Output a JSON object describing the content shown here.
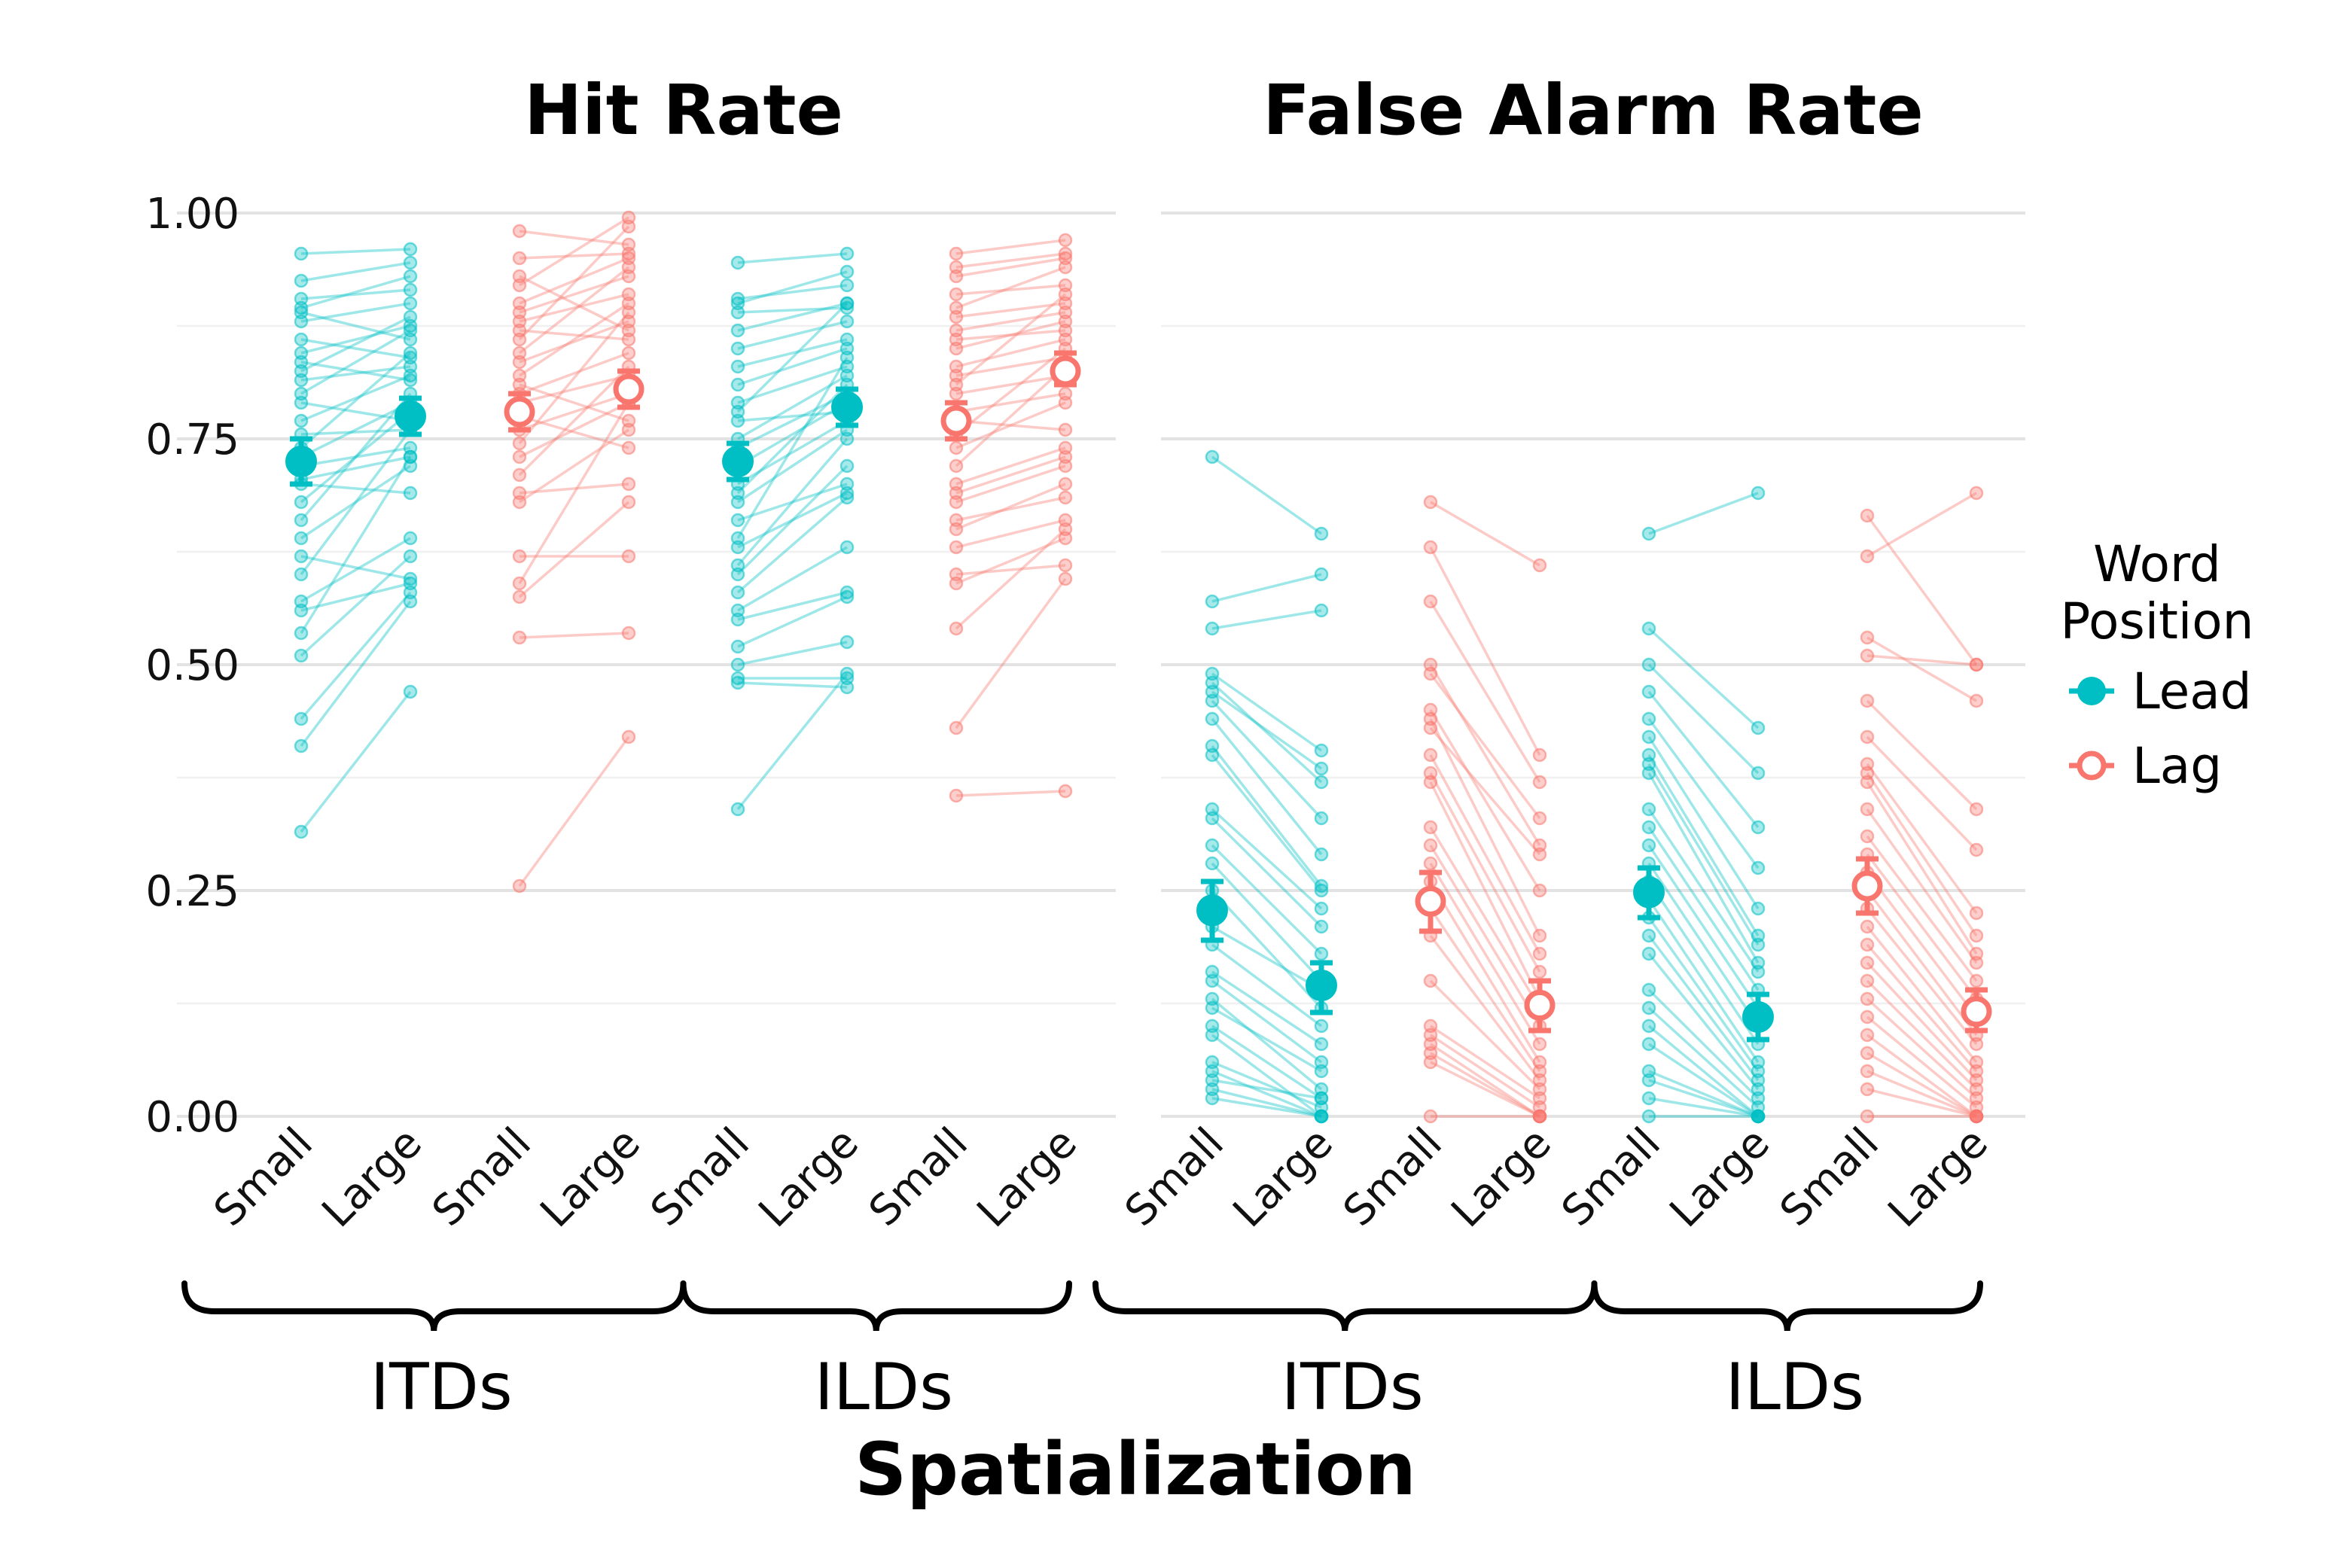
{
  "chart_data": {
    "type": "scatter",
    "subtype": "paired-dot plot with means and error bars (faceted)",
    "facets": [
      "Hit Rate",
      "False Alarm Rate"
    ],
    "x_conditions": [
      "Small",
      "Large",
      "Small",
      "Large",
      "Small",
      "Large",
      "Small",
      "Large"
    ],
    "x_groups": [
      "ITDs",
      "ILDs"
    ],
    "xlabel": "Spatialization",
    "ylim": [
      0,
      1
    ],
    "yticks": [
      "0.00",
      "0.25",
      "0.50",
      "0.75",
      "1.00"
    ],
    "legend": {
      "title_lines": [
        "Word",
        "Position"
      ],
      "position": "right",
      "entries": [
        {
          "name": "Lead",
          "color": "#00BFC4",
          "marker": "filled-circle"
        },
        {
          "name": "Lag",
          "color": "#F8766D",
          "marker": "open-circle"
        }
      ]
    },
    "grid": true,
    "series": [
      {
        "facet": "Hit Rate",
        "group": "ITDs",
        "position": "Lead",
        "color": "#00BFC4",
        "mean": [
          0.725,
          0.775
        ],
        "ci": [
          [
            0.7,
            0.75
          ],
          [
            0.755,
            0.795
          ]
        ],
        "pairs": [
          [
            0.955,
            0.96
          ],
          [
            0.925,
            0.945
          ],
          [
            0.905,
            0.915
          ],
          [
            0.895,
            0.93
          ],
          [
            0.89,
            0.86
          ],
          [
            0.88,
            0.9
          ],
          [
            0.86,
            0.84
          ],
          [
            0.845,
            0.875
          ],
          [
            0.835,
            0.815
          ],
          [
            0.825,
            0.885
          ],
          [
            0.815,
            0.83
          ],
          [
            0.8,
            0.87
          ],
          [
            0.79,
            0.77
          ],
          [
            0.77,
            0.82
          ],
          [
            0.755,
            0.76
          ],
          [
            0.74,
            0.845
          ],
          [
            0.73,
            0.79
          ],
          [
            0.72,
            0.74
          ],
          [
            0.705,
            0.73
          ],
          [
            0.7,
            0.69
          ],
          [
            0.68,
            0.78
          ],
          [
            0.66,
            0.8
          ],
          [
            0.64,
            0.72
          ],
          [
            0.62,
            0.595
          ],
          [
            0.6,
            0.76
          ],
          [
            0.57,
            0.64
          ],
          [
            0.56,
            0.59
          ],
          [
            0.535,
            0.73
          ],
          [
            0.51,
            0.62
          ],
          [
            0.44,
            0.58
          ],
          [
            0.41,
            0.57
          ],
          [
            0.315,
            0.47
          ]
        ]
      },
      {
        "facet": "Hit Rate",
        "group": "ITDs",
        "position": "Lag",
        "color": "#F8766D",
        "mean": [
          0.78,
          0.805
        ],
        "ci": [
          [
            0.76,
            0.8
          ],
          [
            0.785,
            0.825
          ]
        ],
        "pairs": [
          [
            0.98,
            0.965
          ],
          [
            0.95,
            0.955
          ],
          [
            0.93,
            0.87
          ],
          [
            0.92,
            0.995
          ],
          [
            0.9,
            0.95
          ],
          [
            0.89,
            0.93
          ],
          [
            0.88,
            0.91
          ],
          [
            0.87,
            0.86
          ],
          [
            0.86,
            0.985
          ],
          [
            0.845,
            0.94
          ],
          [
            0.835,
            0.88
          ],
          [
            0.82,
            0.9
          ],
          [
            0.81,
            0.77
          ],
          [
            0.8,
            0.845
          ],
          [
            0.79,
            0.82
          ],
          [
            0.775,
            0.74
          ],
          [
            0.76,
            0.8
          ],
          [
            0.745,
            0.89
          ],
          [
            0.73,
            0.79
          ],
          [
            0.71,
            0.83
          ],
          [
            0.69,
            0.7
          ],
          [
            0.68,
            0.76
          ],
          [
            0.62,
            0.62
          ],
          [
            0.59,
            0.79
          ],
          [
            0.575,
            0.68
          ],
          [
            0.53,
            0.535
          ],
          [
            0.255,
            0.42
          ]
        ]
      },
      {
        "facet": "Hit Rate",
        "group": "ILDs",
        "position": "Lead",
        "color": "#00BFC4",
        "mean": [
          0.725,
          0.785
        ],
        "ci": [
          [
            0.705,
            0.745
          ],
          [
            0.765,
            0.805
          ]
        ],
        "pairs": [
          [
            0.945,
            0.955
          ],
          [
            0.905,
            0.92
          ],
          [
            0.9,
            0.935
          ],
          [
            0.89,
            0.895
          ],
          [
            0.87,
            0.9
          ],
          [
            0.85,
            0.88
          ],
          [
            0.83,
            0.86
          ],
          [
            0.81,
            0.85
          ],
          [
            0.79,
            0.83
          ],
          [
            0.78,
            0.9
          ],
          [
            0.77,
            0.78
          ],
          [
            0.75,
            0.82
          ],
          [
            0.74,
            0.8
          ],
          [
            0.72,
            0.79
          ],
          [
            0.7,
            0.77
          ],
          [
            0.69,
            0.81
          ],
          [
            0.68,
            0.76
          ],
          [
            0.66,
            0.7
          ],
          [
            0.64,
            0.84
          ],
          [
            0.63,
            0.69
          ],
          [
            0.61,
            0.75
          ],
          [
            0.6,
            0.72
          ],
          [
            0.58,
            0.685
          ],
          [
            0.56,
            0.63
          ],
          [
            0.55,
            0.58
          ],
          [
            0.52,
            0.575
          ],
          [
            0.5,
            0.525
          ],
          [
            0.485,
            0.485
          ],
          [
            0.48,
            0.475
          ],
          [
            0.34,
            0.49
          ]
        ]
      },
      {
        "facet": "Hit Rate",
        "group": "ILDs",
        "position": "Lag",
        "color": "#F8766D",
        "mean": [
          0.77,
          0.825
        ],
        "ci": [
          [
            0.75,
            0.79
          ],
          [
            0.81,
            0.845
          ]
        ],
        "pairs": [
          [
            0.955,
            0.97
          ],
          [
            0.94,
            0.955
          ],
          [
            0.93,
            0.95
          ],
          [
            0.91,
            0.92
          ],
          [
            0.895,
            0.94
          ],
          [
            0.885,
            0.9
          ],
          [
            0.87,
            0.89
          ],
          [
            0.86,
            0.87
          ],
          [
            0.85,
            0.88
          ],
          [
            0.83,
            0.86
          ],
          [
            0.82,
            0.84
          ],
          [
            0.81,
            0.91
          ],
          [
            0.8,
            0.82
          ],
          [
            0.78,
            0.8
          ],
          [
            0.77,
            0.76
          ],
          [
            0.755,
            0.85
          ],
          [
            0.74,
            0.79
          ],
          [
            0.72,
            0.83
          ],
          [
            0.7,
            0.74
          ],
          [
            0.69,
            0.73
          ],
          [
            0.68,
            0.72
          ],
          [
            0.66,
            0.685
          ],
          [
            0.65,
            0.7
          ],
          [
            0.63,
            0.66
          ],
          [
            0.6,
            0.61
          ],
          [
            0.59,
            0.64
          ],
          [
            0.54,
            0.65
          ],
          [
            0.43,
            0.595
          ],
          [
            0.355,
            0.36
          ]
        ]
      },
      {
        "facet": "False Alarm Rate",
        "group": "ITDs",
        "position": "Lead",
        "color": "#00BFC4",
        "mean": [
          0.228,
          0.145
        ],
        "ci": [
          [
            0.195,
            0.26
          ],
          [
            0.115,
            0.17
          ]
        ],
        "pairs": [
          [
            0.73,
            0.645
          ],
          [
            0.57,
            0.6
          ],
          [
            0.54,
            0.56
          ],
          [
            0.49,
            0.405
          ],
          [
            0.48,
            0.37
          ],
          [
            0.47,
            0.385
          ],
          [
            0.46,
            0.33
          ],
          [
            0.44,
            0.29
          ],
          [
            0.41,
            0.255
          ],
          [
            0.4,
            0.25
          ],
          [
            0.34,
            0.23
          ],
          [
            0.33,
            0.21
          ],
          [
            0.3,
            0.18
          ],
          [
            0.28,
            0.15
          ],
          [
            0.25,
            0.12
          ],
          [
            0.21,
            0.14
          ],
          [
            0.19,
            0.1
          ],
          [
            0.16,
            0.08
          ],
          [
            0.15,
            0.06
          ],
          [
            0.13,
            0.03
          ],
          [
            0.12,
            0.05
          ],
          [
            0.1,
            0.02
          ],
          [
            0.09,
            0.0
          ],
          [
            0.06,
            0.01
          ],
          [
            0.05,
            0.0
          ],
          [
            0.04,
            0.02
          ],
          [
            0.03,
            0.0
          ],
          [
            0.02,
            0.0
          ]
        ]
      },
      {
        "facet": "False Alarm Rate",
        "group": "ITDs",
        "position": "Lag",
        "color": "#F8766D",
        "mean": [
          0.238,
          0.123
        ],
        "ci": [
          [
            0.205,
            0.27
          ],
          [
            0.095,
            0.15
          ]
        ],
        "pairs": [
          [
            0.68,
            0.61
          ],
          [
            0.63,
            0.4
          ],
          [
            0.57,
            0.37
          ],
          [
            0.5,
            0.3
          ],
          [
            0.49,
            0.33
          ],
          [
            0.45,
            0.25
          ],
          [
            0.44,
            0.2
          ],
          [
            0.43,
            0.29
          ],
          [
            0.4,
            0.18
          ],
          [
            0.38,
            0.16
          ],
          [
            0.37,
            0.13
          ],
          [
            0.32,
            0.12
          ],
          [
            0.3,
            0.1
          ],
          [
            0.28,
            0.08
          ],
          [
            0.26,
            0.06
          ],
          [
            0.23,
            0.05
          ],
          [
            0.2,
            0.04
          ],
          [
            0.15,
            0.03
          ],
          [
            0.1,
            0.02
          ],
          [
            0.09,
            0.01
          ],
          [
            0.08,
            0.0
          ],
          [
            0.07,
            0.0
          ],
          [
            0.06,
            0.0
          ],
          [
            0.0,
            0.0
          ]
        ]
      },
      {
        "facet": "False Alarm Rate",
        "group": "ILDs",
        "position": "Lead",
        "color": "#00BFC4",
        "mean": [
          0.248,
          0.11
        ],
        "ci": [
          [
            0.22,
            0.275
          ],
          [
            0.085,
            0.135
          ]
        ],
        "pairs": [
          [
            0.645,
            0.69
          ],
          [
            0.54,
            0.43
          ],
          [
            0.5,
            0.38
          ],
          [
            0.47,
            0.32
          ],
          [
            0.44,
            0.275
          ],
          [
            0.42,
            0.23
          ],
          [
            0.4,
            0.2
          ],
          [
            0.39,
            0.19
          ],
          [
            0.38,
            0.17
          ],
          [
            0.34,
            0.16
          ],
          [
            0.32,
            0.14
          ],
          [
            0.3,
            0.12
          ],
          [
            0.28,
            0.1
          ],
          [
            0.26,
            0.08
          ],
          [
            0.24,
            0.06
          ],
          [
            0.22,
            0.05
          ],
          [
            0.2,
            0.04
          ],
          [
            0.18,
            0.03
          ],
          [
            0.14,
            0.02
          ],
          [
            0.12,
            0.01
          ],
          [
            0.1,
            0.0
          ],
          [
            0.08,
            0.0
          ],
          [
            0.05,
            0.0
          ],
          [
            0.04,
            0.0
          ],
          [
            0.02,
            0.0
          ],
          [
            0.0,
            0.0
          ]
        ]
      },
      {
        "facet": "False Alarm Rate",
        "group": "ILDs",
        "position": "Lag",
        "color": "#F8766D",
        "mean": [
          0.255,
          0.116
        ],
        "ci": [
          [
            0.225,
            0.285
          ],
          [
            0.095,
            0.14
          ]
        ],
        "pairs": [
          [
            0.665,
            0.5
          ],
          [
            0.62,
            0.69
          ],
          [
            0.53,
            0.46
          ],
          [
            0.51,
            0.5
          ],
          [
            0.46,
            0.34
          ],
          [
            0.42,
            0.295
          ],
          [
            0.39,
            0.225
          ],
          [
            0.38,
            0.2
          ],
          [
            0.37,
            0.18
          ],
          [
            0.34,
            0.17
          ],
          [
            0.31,
            0.15
          ],
          [
            0.29,
            0.13
          ],
          [
            0.27,
            0.11
          ],
          [
            0.25,
            0.09
          ],
          [
            0.23,
            0.08
          ],
          [
            0.21,
            0.06
          ],
          [
            0.19,
            0.05
          ],
          [
            0.17,
            0.04
          ],
          [
            0.15,
            0.03
          ],
          [
            0.13,
            0.02
          ],
          [
            0.11,
            0.01
          ],
          [
            0.09,
            0.0
          ],
          [
            0.07,
            0.0
          ],
          [
            0.05,
            0.0
          ],
          [
            0.03,
            0.0
          ],
          [
            0.0,
            0.0
          ]
        ]
      }
    ]
  }
}
